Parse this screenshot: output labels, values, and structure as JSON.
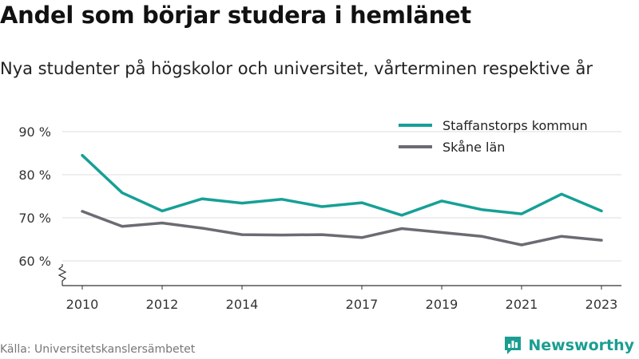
{
  "header": {
    "title": "Andel som börjar studera i hemlänet",
    "subtitle": "Nya studenter på högskolor och universitet, vårterminen respektive år"
  },
  "footer": {
    "source": "Källa: Universitetskanslersämbetet",
    "brand": "Newsworthy"
  },
  "colors": {
    "accent": "#16a096",
    "secondary": "#6b6b73",
    "grid": "#dddddd",
    "brand": "#1a9e92"
  },
  "icons": {
    "brand": "newsworthy-chart-icon",
    "axis_break": "zigzag-break-icon"
  },
  "chart_data": {
    "type": "line",
    "x_ticks": [
      2010,
      2012,
      2014,
      2017,
      2019,
      2021,
      2023
    ],
    "y_ticks": [
      {
        "value": 60,
        "label": "60 %"
      },
      {
        "value": 70,
        "label": "70 %"
      },
      {
        "value": 80,
        "label": "80 %"
      },
      {
        "value": 90,
        "label": "90 %"
      }
    ],
    "ylim": [
      60,
      90
    ],
    "y_axis_break": true,
    "grid": "horizontal",
    "legend_position": "top-right",
    "series": [
      {
        "name": "Staffanstorps kommun",
        "color": "#16a096",
        "x": [
          2010,
          2011,
          2012,
          2013,
          2014,
          2015,
          2016,
          2017,
          2018,
          2019,
          2020,
          2021,
          2022,
          2023
        ],
        "values": [
          84.5,
          75.8,
          71.6,
          74.4,
          73.4,
          74.3,
          72.6,
          73.5,
          70.6,
          73.9,
          71.9,
          70.9,
          75.5,
          71.6
        ]
      },
      {
        "name": "Skåne län",
        "color": "#6b6b73",
        "x": [
          2010,
          2011,
          2012,
          2013,
          2014,
          2015,
          2016,
          2017,
          2018,
          2019,
          2020,
          2021,
          2022,
          2023
        ],
        "values": [
          71.5,
          68.0,
          68.8,
          67.6,
          66.1,
          66.0,
          66.1,
          65.4,
          67.5,
          66.6,
          65.7,
          63.7,
          65.7,
          64.8
        ]
      }
    ]
  }
}
